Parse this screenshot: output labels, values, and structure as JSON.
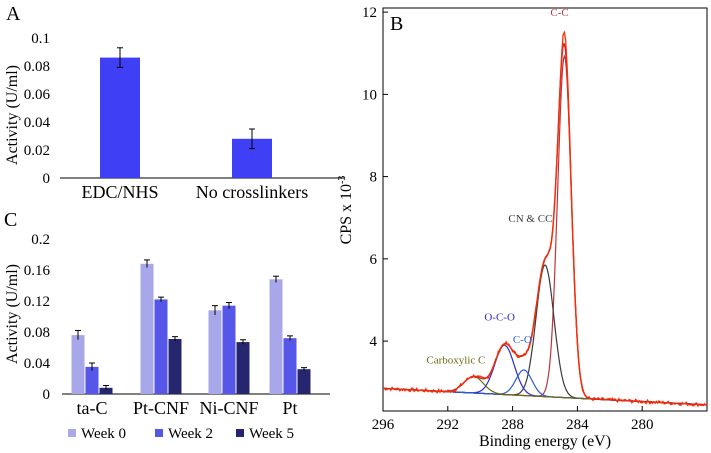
{
  "colors": {
    "bar_blue": "#3f3ff5",
    "week0": "#a7a7ea",
    "week2": "#5656e8",
    "week5": "#26266f",
    "xps_measured": "#ff2a00",
    "xps_envelope": "#b0323c",
    "cc_component": "#c0333b",
    "cn_component": "#3a3a3a",
    "oco_component": "#2a2ad0",
    "co_component": "#2a5ad8",
    "carboxylic_component": "#6b6b10",
    "background": "#3a3a3a"
  },
  "chart_data": [
    {
      "panel": "A",
      "type": "bar",
      "ylabel": "Activity (U/ml)",
      "ylim": [
        0,
        0.1
      ],
      "yticks": [
        0,
        0.02,
        0.04,
        0.06,
        0.08,
        0.1
      ],
      "ytick_labels": [
        "0",
        "0.02",
        "0.04",
        "0.06",
        "0.08",
        "0.1"
      ],
      "categories": [
        "EDC/NHS",
        "No crosslinkers"
      ],
      "values": [
        0.086,
        0.028
      ],
      "errors": [
        0.007,
        0.007
      ]
    },
    {
      "panel": "C",
      "type": "bar",
      "ylabel": "Activity (U/ml)",
      "ylim": [
        0,
        0.2
      ],
      "yticks": [
        0,
        0.04,
        0.08,
        0.12,
        0.16,
        0.2
      ],
      "ytick_labels": [
        "0",
        "0.04",
        "0.08",
        "0.12",
        "0.16",
        "0.2"
      ],
      "categories": [
        "ta-C",
        "Pt-CNF",
        "Ni-CNF",
        "Pt"
      ],
      "series": [
        {
          "name": "Week 0",
          "values": [
            0.076,
            0.168,
            0.108,
            0.148
          ],
          "errors": [
            0.006,
            0.005,
            0.006,
            0.004
          ]
        },
        {
          "name": "Week 2",
          "values": [
            0.035,
            0.122,
            0.114,
            0.072
          ],
          "errors": [
            0.005,
            0.003,
            0.004,
            0.003
          ]
        },
        {
          "name": "Week 5",
          "values": [
            0.008,
            0.071,
            0.067,
            0.032
          ],
          "errors": [
            0.003,
            0.003,
            0.003,
            0.002
          ]
        }
      ],
      "legend": "bottom"
    },
    {
      "panel": "B",
      "type": "line",
      "xlabel": "Binding energy (eV)",
      "ylabel": "CPS x 10",
      "ylabel_superscript": "-3",
      "xlim": [
        296,
        276
      ],
      "ylim": [
        2.3,
        12.1
      ],
      "xticks": [
        296,
        292,
        288,
        284,
        280
      ],
      "yticks": [
        4,
        6,
        8,
        10,
        12
      ],
      "annotations": [
        {
          "text": "C-C",
          "x": 285.1,
          "y": 11.9
        },
        {
          "text": "CN & CC",
          "x": 286.9,
          "y": 6.9
        },
        {
          "text": "O-C-O",
          "x": 288.8,
          "y": 4.5
        },
        {
          "text": "C-O",
          "x": 287.4,
          "y": 3.95
        },
        {
          "text": "Carboxylic C",
          "x": 291.5,
          "y": 3.45
        }
      ],
      "background_level": {
        "x_high": 296,
        "x_low": 276,
        "y_high": 2.85,
        "y_low": 2.45
      },
      "components": [
        {
          "label": "C-C",
          "center": 284.8,
          "height": 8.3,
          "sigma": 0.42
        },
        {
          "label": "CN & CC",
          "center": 286.0,
          "height": 3.2,
          "sigma": 0.55
        },
        {
          "label": "O-C-O",
          "center": 288.5,
          "height": 1.2,
          "sigma": 0.6
        },
        {
          "label": "C-O",
          "center": 287.3,
          "height": 0.62,
          "sigma": 0.5
        },
        {
          "label": "Carboxylic C",
          "center": 290.4,
          "height": 0.4,
          "sigma": 0.6
        }
      ]
    }
  ]
}
